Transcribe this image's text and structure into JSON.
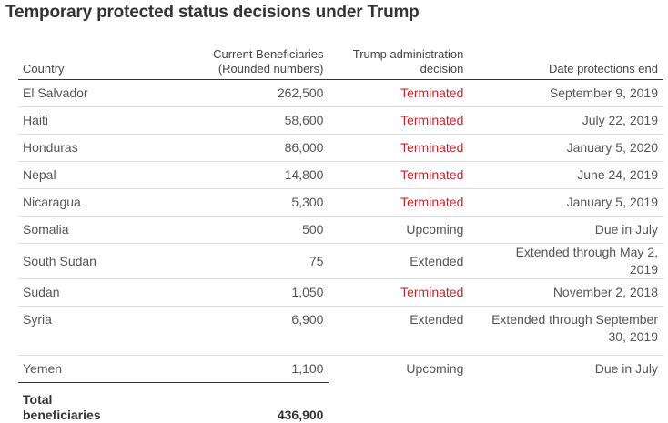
{
  "title": "Temporary protected status decisions under Trump",
  "table": {
    "headers": [
      "Country",
      "Current Beneficiaries (Rounded numbers)",
      "Trump administration decision",
      "Date protections end"
    ],
    "rows": [
      [
        "El Salvador",
        "262,500",
        "Terminated",
        "September 9, 2019"
      ],
      [
        "Haiti",
        "58,600",
        "Terminated",
        "July 22, 2019"
      ],
      [
        "Honduras",
        "86,000",
        "Terminated",
        "January 5, 2020"
      ],
      [
        "Nepal",
        "14,800",
        "Terminated",
        "June 24, 2019"
      ],
      [
        "Nicaragua",
        "5,300",
        "Terminated",
        "January 5, 2019"
      ],
      [
        "Somalia",
        "500",
        "Upcoming",
        "Due in July"
      ],
      [
        "South Sudan",
        "75",
        "Extended",
        "Extended through May 2, 2019"
      ],
      [
        "Sudan",
        "1,050",
        "Terminated",
        "November 2, 2018"
      ],
      [
        "Syria",
        "6,900",
        "Extended",
        "Extended through September 30, 2019"
      ],
      [
        "Yemen",
        "1,100",
        "Upcoming",
        "Due in July"
      ]
    ],
    "total": [
      "Total beneficiaries",
      "436,900"
    ]
  }
}
